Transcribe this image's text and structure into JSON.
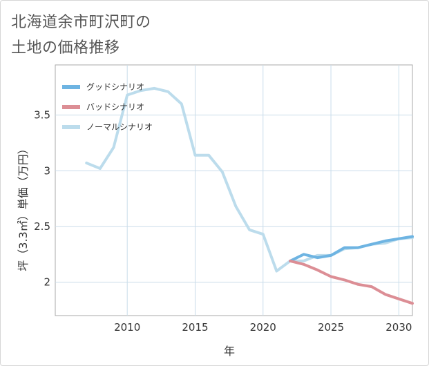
{
  "chart_data": {
    "type": "line",
    "title": [
      "北海道余市町沢町の",
      "土地の価格推移"
    ],
    "xlabel": "年",
    "ylabel": "坪（3.3㎡）単価（万円）",
    "xlim": [
      2004.7,
      2031
    ],
    "ylim": [
      1.7,
      3.95
    ],
    "x_ticks": [
      2010,
      2015,
      2020,
      2025,
      2030
    ],
    "y_ticks": [
      2,
      2.5,
      3,
      3.5
    ],
    "y_tick_labels": [
      "2",
      "2.5",
      "3",
      "3.5"
    ],
    "legend_position": "top-left",
    "series": [
      {
        "name": "グッドシナリオ",
        "color": "#6eb4e2",
        "x": [
          2022,
          2023,
          2024,
          2025,
          2026,
          2027,
          2028,
          2029,
          2030,
          2031
        ],
        "values": [
          2.19,
          2.25,
          2.22,
          2.24,
          2.31,
          2.31,
          2.34,
          2.37,
          2.39,
          2.41
        ]
      },
      {
        "name": "バッドシナリオ",
        "color": "#dc8e95",
        "x": [
          2022,
          2023,
          2024,
          2025,
          2026,
          2027,
          2028,
          2029,
          2030,
          2031
        ],
        "values": [
          2.19,
          2.16,
          2.11,
          2.05,
          2.02,
          1.98,
          1.96,
          1.89,
          1.85,
          1.81
        ]
      },
      {
        "name": "ノーマルシナリオ",
        "color": "#bcdcec",
        "x": [
          2007,
          2008,
          2009,
          2010,
          2011,
          2012,
          2013,
          2014,
          2015,
          2016,
          2017,
          2018,
          2019,
          2020,
          2021,
          2022,
          2023,
          2024,
          2025,
          2026,
          2027,
          2028,
          2029,
          2030,
          2031
        ],
        "values": [
          3.07,
          3.02,
          3.21,
          3.68,
          3.72,
          3.74,
          3.71,
          3.6,
          3.14,
          3.14,
          2.99,
          2.68,
          2.47,
          2.43,
          2.1,
          2.19,
          2.19,
          2.24,
          2.24,
          2.3,
          2.31,
          2.34,
          2.35,
          2.39,
          2.4
        ]
      }
    ]
  }
}
